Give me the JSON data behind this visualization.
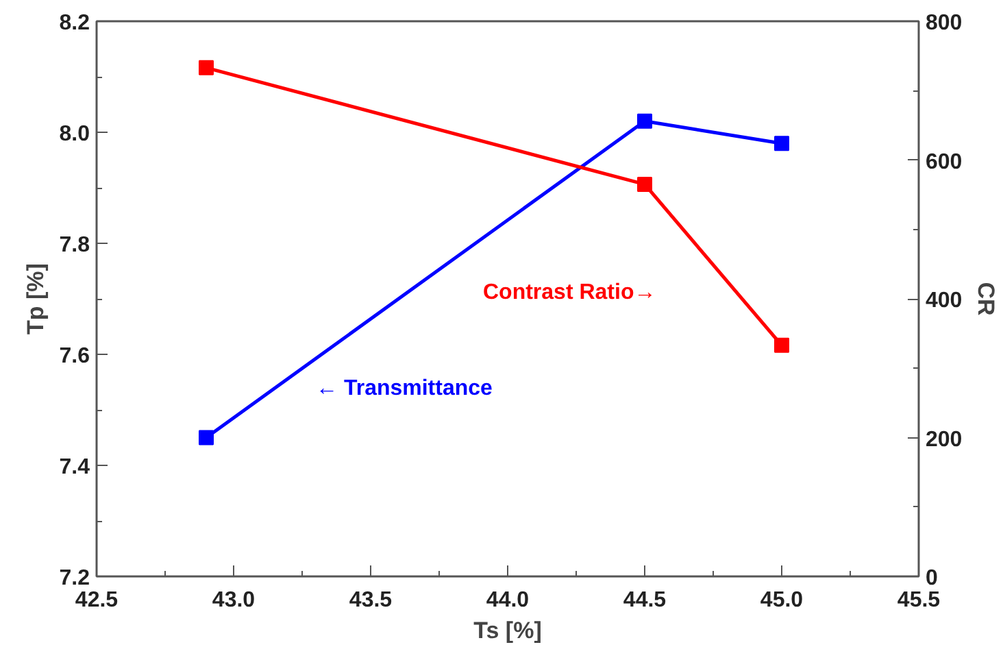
{
  "chart_data": {
    "type": "line",
    "xlabel": "Ts [%]",
    "ylabel": "Tp [%]",
    "y2label": "CR",
    "x": [
      42.9,
      44.5,
      45.0
    ],
    "series": [
      {
        "color": "#0000ff",
        "values": [
          7.45,
          8.02,
          7.98
        ]
      },
      {
        "color": "#ff0000",
        "values": [
          733,
          565,
          333
        ],
        "axis": "y2"
      }
    ],
    "xlim": [
      42.5,
      45.5
    ],
    "xticks": [
      {
        "value": 42.5,
        "label": "42.5"
      },
      {
        "value": 43.0,
        "label": "43.0"
      },
      {
        "value": 43.5,
        "label": "43.5"
      },
      {
        "value": 44.0,
        "label": "44.0"
      },
      {
        "value": 44.5,
        "label": "44.5"
      },
      {
        "value": 45.0,
        "label": "45.0"
      },
      {
        "value": 45.5,
        "label": "45.5"
      }
    ],
    "ylim": [
      7.2,
      8.2
    ],
    "yticks": [
      {
        "value": 7.2,
        "label": "7.2"
      },
      {
        "value": 7.4,
        "label": "7.4"
      },
      {
        "value": 7.6,
        "label": "7.6"
      },
      {
        "value": 7.8,
        "label": "7.8"
      },
      {
        "value": 8.0,
        "label": "8.0"
      },
      {
        "value": 8.2,
        "label": "8.2"
      }
    ],
    "y2lim": [
      0,
      800
    ],
    "y2ticks": [
      0,
      200,
      400,
      600,
      800
    ],
    "annotations": [
      "← Transmittance",
      "Contrast Ratio→"
    ],
    "marker": "square",
    "line_style": "solid",
    "grid": false
  }
}
